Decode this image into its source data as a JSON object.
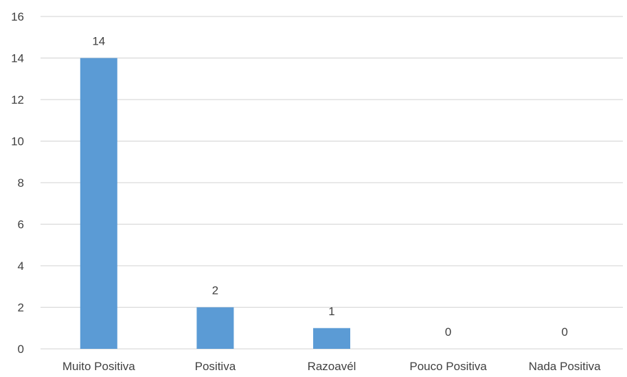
{
  "chart_data": {
    "type": "bar",
    "title": "",
    "xlabel": "",
    "ylabel": "",
    "categories": [
      "Muito Positiva",
      "Positiva",
      "Razoavél",
      "Pouco Positiva",
      "Nada Positiva"
    ],
    "values": [
      14,
      2,
      1,
      0,
      0
    ],
    "data_labels": [
      "14",
      "2",
      "1",
      "0",
      "0"
    ],
    "ylim": [
      0,
      16
    ],
    "yticks": [
      0,
      2,
      4,
      6,
      8,
      10,
      12,
      14,
      16
    ],
    "ytick_labels": [
      "0",
      "2",
      "4",
      "6",
      "8",
      "10",
      "12",
      "14",
      "16"
    ],
    "grid": true,
    "legend": "none",
    "colors": {
      "bar": "#5b9bd5",
      "grid": "#d9d9d9",
      "text": "#404040"
    }
  }
}
